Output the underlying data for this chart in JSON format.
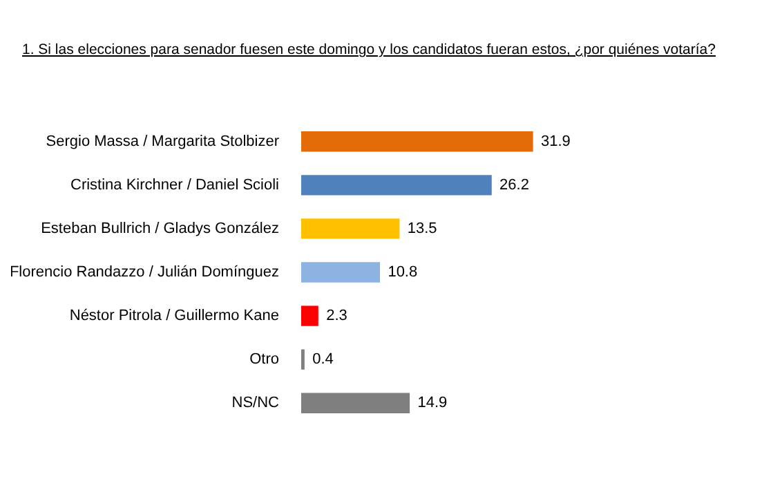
{
  "chart_data": {
    "type": "bar",
    "orientation": "horizontal",
    "title": "1. Si las elecciones para senador fuesen este domingo y los candidatos fueran estos, ¿por quiénes votaría?",
    "categories": [
      "Sergio Massa / Margarita Stolbizer",
      "Cristina Kirchner / Daniel Scioli",
      "Esteban Bullrich / Gladys González",
      "Florencio Randazzo / Julián Domínguez",
      "Néstor Pitrola / Guillermo Kane",
      "Otro",
      "NS/NC"
    ],
    "values": [
      31.9,
      26.2,
      13.5,
      10.8,
      2.3,
      0.4,
      14.9
    ],
    "colors": [
      "#e36c09",
      "#4f81bd",
      "#ffc000",
      "#8db3e2",
      "#ff0000",
      "#7f7f7f",
      "#7f7f7f"
    ],
    "data_labels": true
  }
}
